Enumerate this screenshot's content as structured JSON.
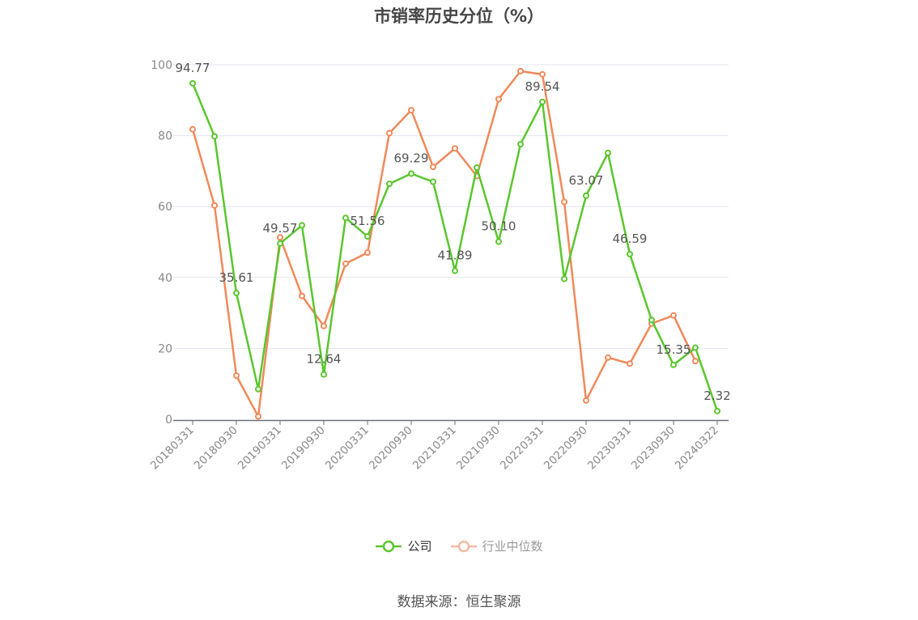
{
  "title": "市销率历史分位（%）",
  "source": "数据来源：恒生聚源",
  "colors": {
    "company": "#5ac62e",
    "industry": "#f0895a",
    "industry_legend": "#f6b9a4",
    "grid": "#e3e6ef",
    "axis": "#6e7079",
    "tick_text": "#888888",
    "label_text": "#555555"
  },
  "chart_data": {
    "type": "line",
    "ylim": [
      0,
      100
    ],
    "yticks": [
      0,
      20,
      40,
      60,
      80,
      100
    ],
    "x": [
      "20180331",
      "20180630",
      "20180930",
      "20181231",
      "20190331",
      "20190630",
      "20190930",
      "20191231",
      "20200331",
      "20200630",
      "20200930",
      "20201231",
      "20210331",
      "20210630",
      "20210930",
      "20211231",
      "20220331",
      "20220630",
      "20220930",
      "20221231",
      "20230331",
      "20230630",
      "20230930",
      "20231231",
      "20240322"
    ],
    "xtick_labels": [
      "20180331",
      "20180930",
      "20190331",
      "20190930",
      "20200331",
      "20200930",
      "20210331",
      "20210930",
      "20220331",
      "20220930",
      "20230331",
      "20230930",
      "20240322"
    ],
    "grid": true,
    "legend": "bottom-center",
    "series": [
      {
        "name": "公司",
        "values": [
          94.77,
          79.8,
          35.61,
          8.5,
          49.57,
          54.7,
          12.64,
          56.8,
          51.56,
          66.4,
          69.29,
          67.0,
          41.89,
          71.0,
          50.1,
          77.6,
          89.54,
          39.6,
          63.07,
          75.1,
          46.59,
          28.0,
          15.35,
          20.2,
          2.32
        ],
        "labels": {
          "0": "94.77",
          "2": "35.61",
          "4": "49.57",
          "6": "12.64",
          "8": "51.56",
          "10": "69.29",
          "12": "41.89",
          "14": "50.10",
          "16": "89.54",
          "18": "63.07",
          "20": "46.59",
          "22": "15.35",
          "24": "2.32"
        }
      },
      {
        "name": "行业中位数",
        "values": [
          81.8,
          60.3,
          12.3,
          0.8,
          51.3,
          34.8,
          26.3,
          43.9,
          47.0,
          80.7,
          87.2,
          71.2,
          76.4,
          68.6,
          90.3,
          98.2,
          97.3,
          61.3,
          5.3,
          17.4,
          15.7,
          27.0,
          29.3,
          16.4,
          null
        ]
      }
    ]
  }
}
